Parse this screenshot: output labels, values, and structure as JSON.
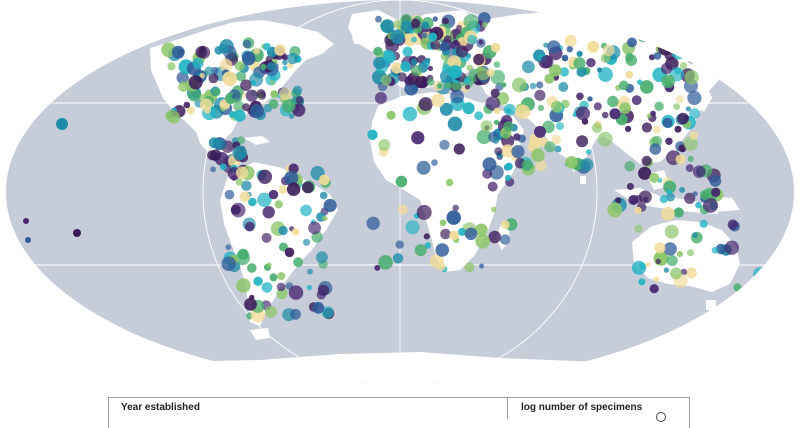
{
  "legend": {
    "year_title": "Year established",
    "size_title": "log number of specimens"
  },
  "colors": {
    "ocean": "#c7ccd9",
    "land": "#ffffff",
    "graticule": "#ffffff",
    "palette": [
      "#3b1c5a",
      "#45266f",
      "#2f5c99",
      "#1f8ca8",
      "#20b3c2",
      "#48ad6e",
      "#8cc56a",
      "#f0dc9a"
    ]
  },
  "icons": {
    "size_sample": "circle-outline-icon"
  }
}
